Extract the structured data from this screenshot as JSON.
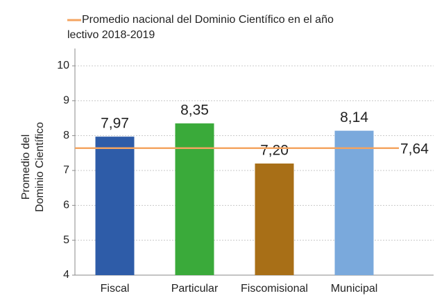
{
  "chart_data": {
    "type": "bar",
    "categories": [
      "Fiscal",
      "Particular",
      "Fiscomisional",
      "Municipal"
    ],
    "values": [
      7.97,
      8.35,
      7.2,
      8.14
    ],
    "value_labels": [
      "7,97",
      "8,35",
      "7,20",
      "8,14"
    ],
    "colors": [
      "#2e5ca8",
      "#3aaa3a",
      "#a86f17",
      "#7aa9dc"
    ],
    "ylabel": [
      "Promedio del",
      "Dominio Científico"
    ],
    "ylim": [
      4,
      10
    ],
    "yticks": [
      4,
      5,
      6,
      7,
      8,
      9,
      10
    ],
    "grid": true,
    "reference_line": {
      "name": [
        "Promedio nacional del Dominio Científico en el año",
        "lectivo 2018-2019"
      ],
      "value": 7.64,
      "label": "7,64",
      "color": "#f4a460"
    }
  }
}
